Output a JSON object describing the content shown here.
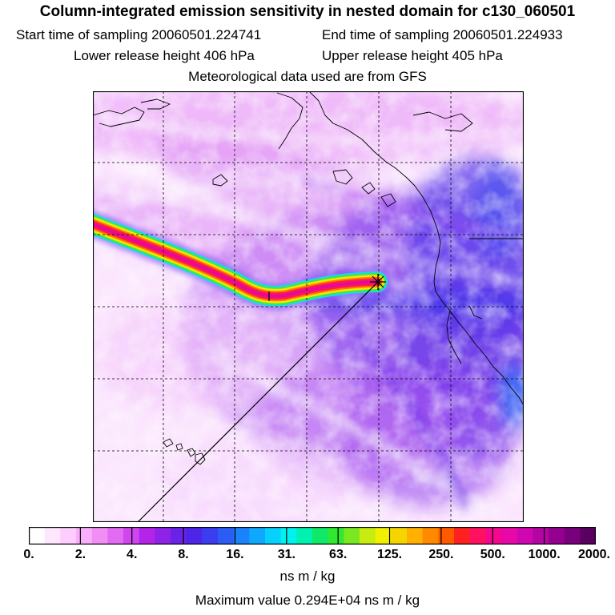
{
  "title": "Column-integrated emission sensitivity in nested domain for c130_060501",
  "sampling": {
    "start": "Start time of sampling 20060501.224741",
    "end": "End time of sampling 20060501.224933"
  },
  "release": {
    "lower": "Lower release height  406 hPa",
    "upper": "Upper release height  405 hPa"
  },
  "met": "Meteorological data used are from GFS",
  "colorbar": {
    "ticks": [
      "0.",
      "2.",
      "4.",
      "8.",
      "16.",
      "31.",
      "63.",
      "125.",
      "250.",
      "500.",
      "1000.",
      "2000."
    ],
    "units": "ns m / kg",
    "colors": [
      "#ffffff",
      "#fde6fe",
      "#fccdfd",
      "#f9aefb",
      "#f08ef6",
      "#e26cf1",
      "#cf46ee",
      "#b323ea",
      "#8e22e6",
      "#6a22e6",
      "#4d24e8",
      "#3a3ef0",
      "#2b5df6",
      "#1a82fa",
      "#10a8fc",
      "#06d0fb",
      "#00f2ee",
      "#00f0b0",
      "#10e868",
      "#30e830",
      "#7ae820",
      "#c8ec10",
      "#f0f000",
      "#f6d400",
      "#ffb000",
      "#ff8a00",
      "#ff5a00",
      "#ff2020",
      "#ff1060",
      "#f40890",
      "#e808a8",
      "#d006b0",
      "#b404a4",
      "#960090",
      "#78007c",
      "#5a0060"
    ]
  },
  "maximum": "Maximum value  0.294E+04 ns m / kg",
  "map": {
    "receptor_marker": "receptor-star",
    "colors": {
      "frame": "#000000",
      "grid": "#000000",
      "coast": "#000000"
    }
  }
}
